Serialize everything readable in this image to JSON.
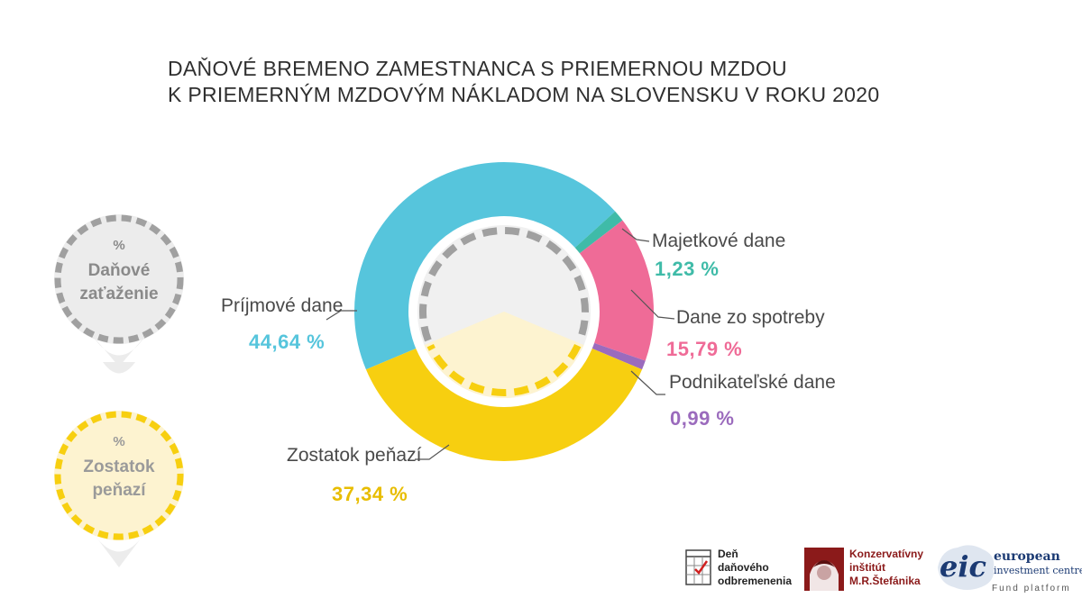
{
  "title": {
    "line1": "DAŇOVÉ BREMENO ZAMESTNANCA S PRIEMERNOU MZDOU",
    "line2": "K PRIEMERNÝM MZDOVÝM NÁKLADOM NA SLOVENSKU V ROKU 2020"
  },
  "chart_data": {
    "type": "pie",
    "variant": "donut",
    "title": "DAŇOVÉ BREMENO ZAMESTNANCA S PRIEMERNOU MZDOU K PRIEMERNÝM MZDOVÝM NÁKLADOM NA SLOVENSKU V ROKU 2020",
    "unit": "%",
    "slices": [
      {
        "name": "Príjmové dane",
        "value": 44.64,
        "label": "44,64 %",
        "color": "#56c5dc"
      },
      {
        "name": "Majetkové dane",
        "value": 1.23,
        "label": "1,23 %",
        "color": "#3fbba8"
      },
      {
        "name": "Dane zo spotreby",
        "value": 15.79,
        "label": "15,79 %",
        "color": "#ef6b97"
      },
      {
        "name": "Podnikateľské dane",
        "value": 0.99,
        "label": "0,99 %",
        "color": "#9b6bbd"
      },
      {
        "name": "Zostatok peňazí",
        "value": 37.34,
        "label": "37,34 %",
        "color": "#f7cf10"
      }
    ],
    "value_colors": {
      "Príjmové dane": "#56c5dc",
      "Majetkové dane": "#3fbba8",
      "Dane zo spotreby": "#ef6b97",
      "Podnikateľské dane": "#9b6bbd",
      "Zostatok peňazí": "#e8bd00"
    }
  },
  "pins": {
    "tax": {
      "pct": "%",
      "line1": "Daňové",
      "line2": "zaťaženie"
    },
    "remainder": {
      "pct": "%",
      "line1": "Zostatok",
      "line2": "peňazí"
    }
  },
  "logos": {
    "den": {
      "line1": "Deň",
      "line2": "daňového",
      "line3": "odbremenenia"
    },
    "kims": {
      "line1": "Konzervatívny",
      "line2": "inštitút",
      "line3": "M.R.Štefánika"
    },
    "eic": {
      "mark": "eic",
      "line1": "european",
      "line2": "investment centre",
      "line3": "Fund platform"
    }
  },
  "colors": {
    "grey_pin": "#ececec",
    "grey_dash": "#a0a0a0",
    "yellow_pin": "#fdf3d0",
    "yellow_dash": "#f7cf10",
    "kims_red": "#8b1a1a",
    "eic_blue": "#1b3a73"
  }
}
